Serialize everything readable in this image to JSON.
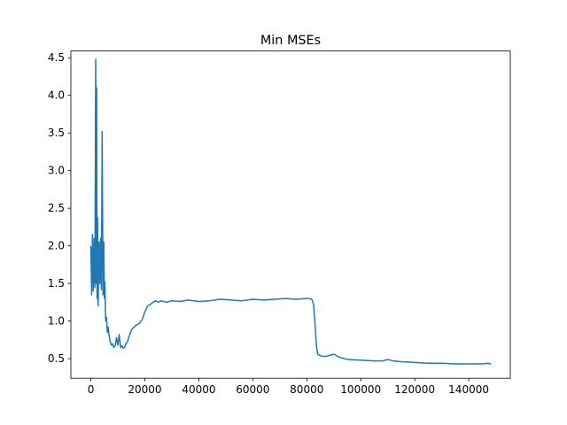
{
  "chart_data": {
    "type": "line",
    "title": "Min MSEs",
    "xlabel": "",
    "ylabel": "",
    "xlim": [
      -7400,
      155400
    ],
    "ylim": [
      0.24,
      4.59
    ],
    "xticks": [
      0,
      20000,
      40000,
      60000,
      80000,
      100000,
      120000,
      140000
    ],
    "xtick_labels": [
      "0",
      "20000",
      "40000",
      "60000",
      "80000",
      "100000",
      "120000",
      "140000"
    ],
    "yticks": [
      0.5,
      1.0,
      1.5,
      2.0,
      2.5,
      3.0,
      3.5,
      4.0,
      4.5
    ],
    "ytick_labels": [
      "0.5",
      "1.0",
      "1.5",
      "2.0",
      "2.5",
      "3.0",
      "3.5",
      "4.0",
      "4.5"
    ],
    "grid": false,
    "legend": "none",
    "series": [
      {
        "color": "#1f77b4",
        "x": [
          0,
          300,
          600,
          900,
          1200,
          1500,
          1800,
          2000,
          2150,
          2300,
          2500,
          2700,
          3000,
          3300,
          3600,
          3900,
          4200,
          4500,
          4800,
          5000,
          5200,
          5500,
          5800,
          6100,
          6400,
          6800,
          7200,
          7600,
          8000,
          8500,
          9000,
          9500,
          10000,
          10500,
          11000,
          11500,
          12000,
          12500,
          13000,
          13500,
          14000,
          15000,
          16000,
          17000,
          18000,
          19000,
          20000,
          21000,
          22000,
          23000,
          24000,
          25000,
          26000,
          27000,
          28000,
          30000,
          33000,
          36000,
          40000,
          44000,
          48000,
          52000,
          56000,
          60000,
          64000,
          68000,
          72000,
          76000,
          80000,
          81000,
          82000,
          82500,
          83000,
          83500,
          84000,
          85000,
          86000,
          87000,
          88000,
          89000,
          90000,
          92000,
          95000,
          100000,
          105000,
          108000,
          110000,
          112000,
          115000,
          120000,
          125000,
          130000,
          135000,
          140000,
          145000,
          147000,
          148000
        ],
        "y": [
          1.99,
          1.35,
          2.15,
          1.4,
          2.1,
          1.45,
          4.48,
          1.5,
          4.1,
          1.3,
          2.38,
          1.2,
          2.05,
          1.5,
          2.1,
          1.42,
          3.52,
          1.35,
          2.05,
          1.3,
          1.52,
          1.0,
          1.05,
          0.85,
          0.92,
          0.8,
          0.72,
          0.68,
          0.7,
          0.65,
          0.67,
          0.78,
          0.68,
          0.82,
          0.65,
          0.67,
          0.64,
          0.65,
          0.7,
          0.72,
          0.78,
          0.88,
          0.92,
          0.95,
          0.97,
          1.02,
          1.12,
          1.2,
          1.22,
          1.25,
          1.27,
          1.25,
          1.27,
          1.26,
          1.25,
          1.27,
          1.26,
          1.28,
          1.26,
          1.27,
          1.29,
          1.28,
          1.27,
          1.29,
          1.28,
          1.29,
          1.3,
          1.29,
          1.3,
          1.3,
          1.28,
          1.22,
          1.0,
          0.7,
          0.56,
          0.54,
          0.53,
          0.53,
          0.54,
          0.55,
          0.56,
          0.52,
          0.49,
          0.48,
          0.47,
          0.47,
          0.49,
          0.47,
          0.46,
          0.45,
          0.44,
          0.44,
          0.43,
          0.43,
          0.43,
          0.44,
          0.43
        ]
      }
    ]
  }
}
